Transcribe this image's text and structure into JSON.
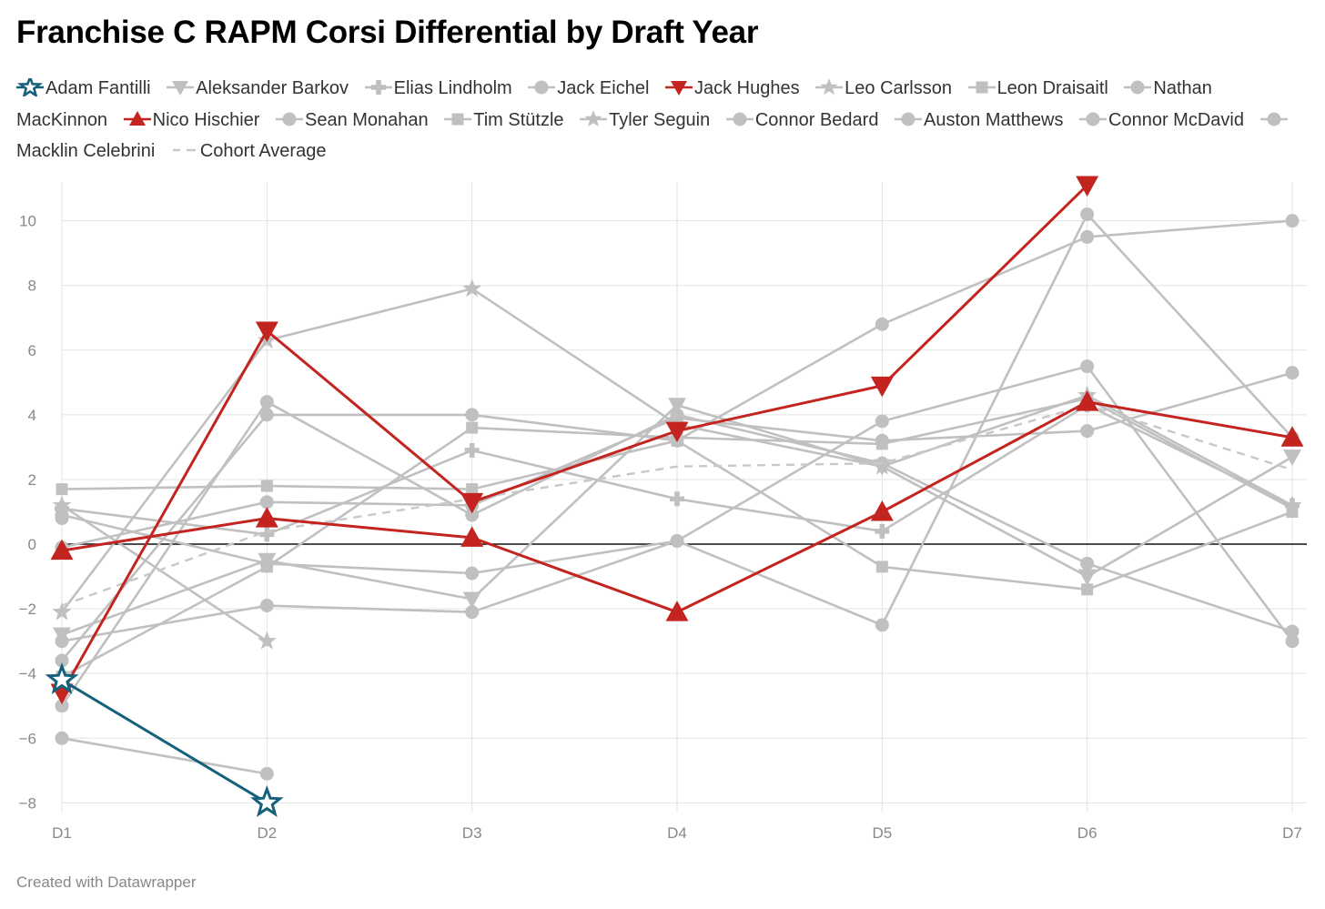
{
  "chart_data": {
    "type": "line",
    "title": "Franchise C RAPM Corsi Differential by Draft Year",
    "categories": [
      "D1",
      "D2",
      "D3",
      "D4",
      "D5",
      "D6",
      "D7"
    ],
    "y_ticks": [
      -8,
      -6,
      -4,
      -2,
      0,
      2,
      4,
      6,
      8,
      10
    ],
    "ylim": [
      -8.3,
      11.2
    ],
    "xlabel": "",
    "ylabel": "",
    "grid": true,
    "legend_placement": "top",
    "series": [
      {
        "name": "Adam Fantilli",
        "marker": "star-outline",
        "color": "#15607a",
        "highlight": true,
        "values": [
          -4.2,
          -8.0,
          null,
          null,
          null,
          null,
          null
        ]
      },
      {
        "name": "Aleksander Barkov",
        "marker": "triangle-down",
        "color": "#c0c0c0",
        "values": [
          -2.8,
          -0.5,
          -1.7,
          4.3,
          2.4,
          -1.0,
          2.7
        ]
      },
      {
        "name": "Elias Lindholm",
        "marker": "plus",
        "color": "#c0c0c0",
        "values": [
          1.1,
          0.3,
          2.9,
          1.4,
          0.4,
          4.3,
          1.2
        ]
      },
      {
        "name": "Jack Eichel",
        "marker": "circle",
        "color": "#c0c0c0",
        "values": [
          -0.1,
          1.3,
          1.2,
          3.9,
          3.2,
          3.5,
          5.3
        ]
      },
      {
        "name": "Jack Hughes",
        "marker": "triangle-down",
        "color": "#c42420",
        "highlight": true,
        "values": [
          -4.6,
          6.6,
          1.3,
          3.5,
          4.9,
          11.1,
          null
        ]
      },
      {
        "name": "Leo Carlsson",
        "marker": "star",
        "color": "#c0c0c0",
        "values": [
          1.2,
          -3.0,
          null,
          null,
          null,
          null,
          null
        ]
      },
      {
        "name": "Leon Draisaitl",
        "marker": "square",
        "color": "#c0c0c0",
        "values": [
          1.7,
          1.8,
          1.7,
          3.2,
          -0.7,
          -1.4,
          1.0
        ]
      },
      {
        "name": "Nathan MacKinnon",
        "marker": "circle",
        "color": "#c0c0c0",
        "values": [
          -3.6,
          4.0,
          4.0,
          3.2,
          6.8,
          9.5,
          10.0
        ]
      },
      {
        "name": "Nico Hischier",
        "marker": "triangle-up",
        "color": "#c42420",
        "highlight": true,
        "values": [
          -0.2,
          0.8,
          0.2,
          -2.1,
          1.0,
          4.4,
          3.3
        ]
      },
      {
        "name": "Sean Monahan",
        "marker": "circle",
        "color": "#c0c0c0",
        "values": [
          -5.0,
          4.4,
          0.9,
          4.0,
          2.5,
          -0.6,
          -2.7
        ]
      },
      {
        "name": "Tim Stützle",
        "marker": "square",
        "color": "#c0c0c0",
        "values": [
          -4.1,
          -0.7,
          3.6,
          3.3,
          3.1,
          4.5,
          1.1
        ]
      },
      {
        "name": "Tyler Seguin",
        "marker": "star",
        "color": "#c0c0c0",
        "values": [
          -2.1,
          6.3,
          7.9,
          3.7,
          2.4,
          4.6,
          1.2
        ]
      },
      {
        "name": "Connor Bedard",
        "marker": "circle",
        "color": "#c0c0c0",
        "values": [
          -6.0,
          -7.1,
          null,
          null,
          null,
          null,
          null
        ]
      },
      {
        "name": "Auston Matthews",
        "marker": "circle",
        "color": "#c0c0c0",
        "values": [
          -3.0,
          -1.9,
          -2.1,
          0.1,
          3.8,
          5.5,
          -3.0
        ]
      },
      {
        "name": "Connor McDavid",
        "marker": "circle",
        "color": "#c0c0c0",
        "values": [
          0.9,
          -0.6,
          -0.9,
          0.1,
          -2.5,
          10.2,
          3.3
        ]
      },
      {
        "name": "Macklin Celebrini",
        "marker": "circle",
        "color": "#c0c0c0",
        "values": [
          0.8,
          null,
          null,
          null,
          null,
          null,
          null
        ]
      },
      {
        "name": "Cohort Average",
        "marker": "dashed",
        "color": "#c8c8c8",
        "dashed": true,
        "values": [
          -1.9,
          0.4,
          1.4,
          2.4,
          2.5,
          4.3,
          2.3
        ]
      }
    ]
  },
  "footer": "Created with Datawrapper"
}
